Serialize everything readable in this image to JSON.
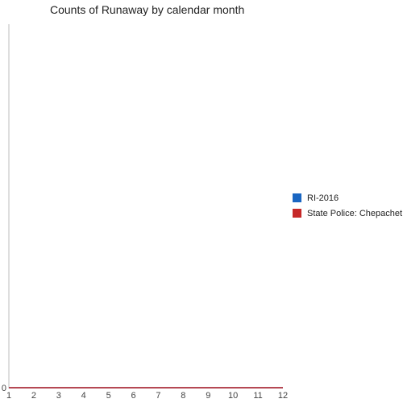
{
  "chart_data": {
    "type": "line",
    "title": "Counts of Runaway by calendar month",
    "xlabel": "",
    "ylabel": "",
    "x": [
      1,
      2,
      3,
      4,
      5,
      6,
      7,
      8,
      9,
      10,
      11,
      12
    ],
    "x_tick_labels": [
      "1",
      "2",
      "3",
      "4",
      "5",
      "6",
      "7",
      "8",
      "9",
      "10",
      "11",
      "12"
    ],
    "y_tick_labels": [
      "0"
    ],
    "xlim": [
      1,
      12
    ],
    "ylim": [
      0,
      1
    ],
    "grid": false,
    "legend_position": "right",
    "series": [
      {
        "name": "RI-2016",
        "color": "#1a66c2",
        "values": [
          0,
          0,
          0,
          0,
          0,
          0,
          0,
          0,
          0,
          0,
          0,
          0
        ]
      },
      {
        "name": "State Police: Chepachet",
        "color": "#c62828",
        "values": [
          0,
          0,
          0,
          0,
          0,
          0,
          0,
          0,
          0,
          0,
          0,
          0
        ]
      }
    ]
  }
}
